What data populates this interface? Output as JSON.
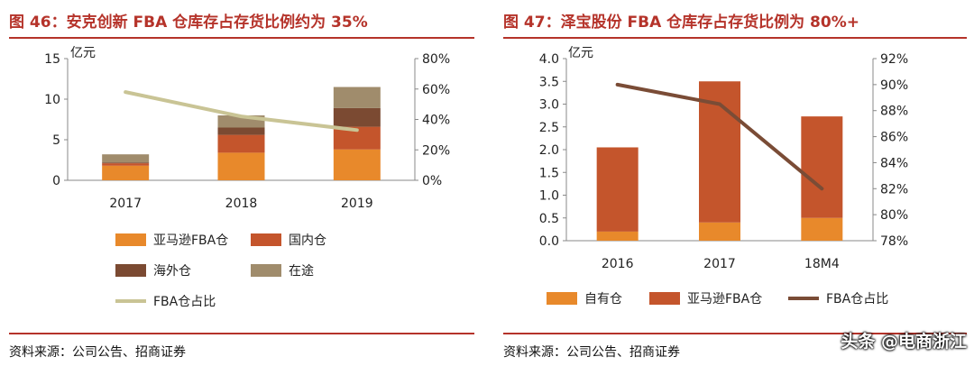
{
  "left": {
    "title": "图 46：安克创新 FBA 仓库存占存货比例约为 35%",
    "source": "资料来源：公司公告、招商证券"
  },
  "right": {
    "title": "图 47：泽宝股份 FBA 仓库存占存货比例为 80%+",
    "source": "资料来源：公司公告、招商证券"
  },
  "watermark": "头条 @电商浙江",
  "colors": {
    "title_red": "#b5332a",
    "orange": "#e8892b",
    "rust": "#c4552c",
    "brown": "#7b4a32",
    "khaki": "#a08c6c",
    "olive_line": "#c9c495",
    "dark_line": "#7a4c36"
  },
  "chart_data": [
    {
      "type": "bar",
      "stacked": true,
      "categories": [
        "2017",
        "2018",
        "2019"
      ],
      "y_unit_label": "亿元",
      "ylim": [
        0,
        15
      ],
      "y_ticks": [
        0,
        5,
        10,
        15
      ],
      "y2lim": [
        0,
        80
      ],
      "y2_ticks": [
        "0%",
        "20%",
        "40%",
        "60%",
        "80%"
      ],
      "series": [
        {
          "name": "亚马逊FBA仓",
          "values": [
            1.8,
            3.4,
            3.8
          ],
          "color": "#e8892b"
        },
        {
          "name": "国内仓",
          "values": [
            0.3,
            2.2,
            2.8
          ],
          "color": "#c4552c"
        },
        {
          "name": "海外仓",
          "values": [
            0.1,
            0.9,
            2.3
          ],
          "color": "#7b4a32"
        },
        {
          "name": "在途",
          "values": [
            1.0,
            1.5,
            2.6
          ],
          "color": "#a08c6c"
        }
      ],
      "line": {
        "name": "FBA仓占比",
        "values": [
          58,
          42,
          33
        ],
        "axis": "right",
        "color": "#c9c495"
      },
      "legend_position": "bottom"
    },
    {
      "type": "bar",
      "stacked": true,
      "categories": [
        "2016",
        "2017",
        "18M4"
      ],
      "y_unit_label": "亿元",
      "ylim": [
        0,
        4
      ],
      "y_ticks": [
        "0.0",
        "0.5",
        "1.0",
        "1.5",
        "2.0",
        "2.5",
        "3.0",
        "3.5",
        "4.0"
      ],
      "y2lim": [
        78,
        92
      ],
      "y2_ticks": [
        "78%",
        "80%",
        "82%",
        "84%",
        "86%",
        "88%",
        "90%",
        "92%"
      ],
      "series": [
        {
          "name": "自有仓",
          "values": [
            0.2,
            0.4,
            0.5
          ],
          "color": "#e8892b"
        },
        {
          "name": "亚马逊FBA仓",
          "values": [
            1.85,
            3.1,
            2.23
          ],
          "color": "#c4552c"
        }
      ],
      "line": {
        "name": "FBA仓占比",
        "values": [
          90.0,
          88.5,
          82.0
        ],
        "axis": "right",
        "color": "#7a4c36"
      },
      "legend_position": "bottom"
    }
  ]
}
